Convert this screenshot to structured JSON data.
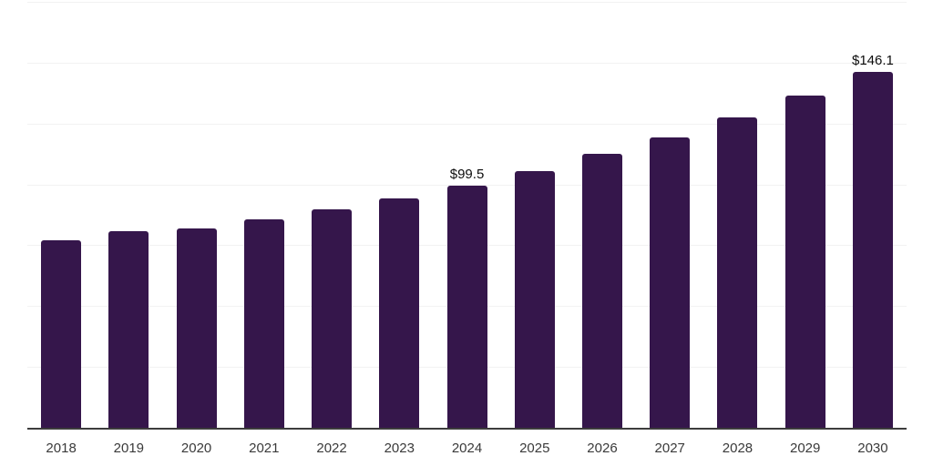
{
  "page": {
    "background": "#ffffff"
  },
  "chart_data": {
    "type": "bar",
    "title": "",
    "xlabel": "",
    "ylabel": "",
    "categories": [
      "2018",
      "2019",
      "2020",
      "2021",
      "2022",
      "2023",
      "2024",
      "2025",
      "2026",
      "2027",
      "2028",
      "2029",
      "2030"
    ],
    "values": [
      77.0,
      80.7,
      81.8,
      85.7,
      89.6,
      94.4,
      99.5,
      105.6,
      112.4,
      119.2,
      127.7,
      136.4,
      146.1
    ],
    "data_labels": [
      "",
      "",
      "",
      "",
      "",
      "",
      "$99.5",
      "",
      "",
      "",
      "",
      "",
      "$146.1"
    ],
    "ylim": [
      0,
      175
    ],
    "gridline_step": 25,
    "grid": "horizontal",
    "legend": "none",
    "y_tick_labels_visible": false,
    "colors": {
      "bar": "#35164B",
      "gridline": "#f2f2f2",
      "axis_line": "#3d3d3d",
      "tick_label": "#3a3a3a",
      "data_label": "#0d0d0d"
    }
  }
}
